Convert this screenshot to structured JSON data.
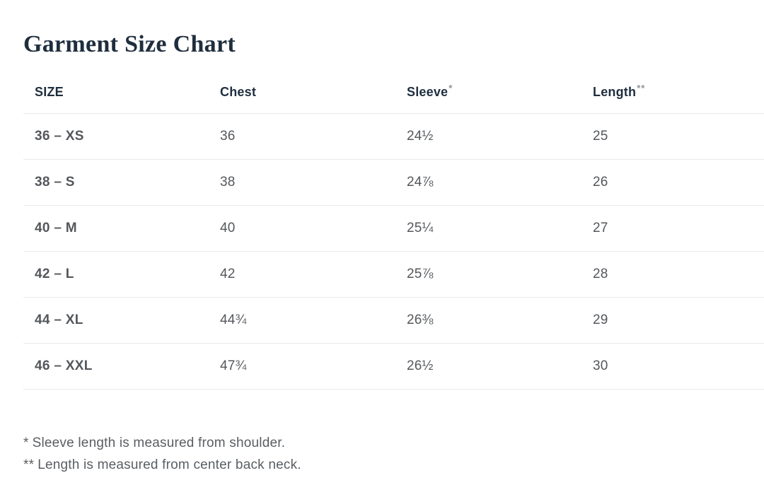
{
  "page": {
    "title": "Garment Size Chart"
  },
  "table": {
    "columns": [
      {
        "label": "SIZE",
        "marker": ""
      },
      {
        "label": "Chest",
        "marker": ""
      },
      {
        "label": "Sleeve",
        "marker": "*"
      },
      {
        "label": "Length",
        "marker": "**"
      }
    ],
    "rows": [
      {
        "size": "36 – XS",
        "chest": "36",
        "sleeve": "24½",
        "length": "25"
      },
      {
        "size": "38 – S",
        "chest": "38",
        "sleeve": "24⅞",
        "length": "26"
      },
      {
        "size": "40 – M",
        "chest": "40",
        "sleeve": "25¼",
        "length": "27"
      },
      {
        "size": "42 – L",
        "chest": "42",
        "sleeve": "25⅞",
        "length": "28"
      },
      {
        "size": "44 – XL",
        "chest": "44¾",
        "sleeve": "26⅜",
        "length": "29"
      },
      {
        "size": "46 – XXL",
        "chest": "47¾",
        "sleeve": "26½",
        "length": "30"
      }
    ]
  },
  "footnotes": [
    {
      "marker": "*",
      "text": "Sleeve length is measured from shoulder."
    },
    {
      "marker": "**",
      "text": "Length is measured from center back neck."
    }
  ],
  "colors": {
    "heading": "#1f2e3e",
    "body_text": "#54575b",
    "footnote_text": "#5a5e62",
    "marker": "#8e9296",
    "divider": "#e9e9eb",
    "background": "#ffffff"
  }
}
